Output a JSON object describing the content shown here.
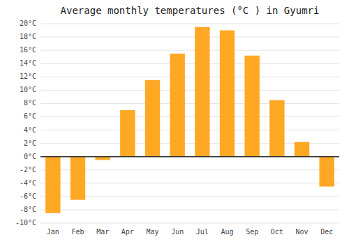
{
  "chart_data": {
    "type": "bar",
    "title": "Average monthly temperatures (°C ) in Gyumri",
    "categories": [
      "Jan",
      "Feb",
      "Mar",
      "Apr",
      "May",
      "Jun",
      "Jul",
      "Aug",
      "Sep",
      "Oct",
      "Nov",
      "Dec"
    ],
    "values": [
      -8.5,
      -6.5,
      -0.5,
      7,
      11.5,
      15.5,
      19.5,
      19,
      15.2,
      8.5,
      2.2,
      -4.5
    ],
    "color": "#FFA824",
    "ylim": [
      -10,
      20
    ],
    "yticks": [
      {
        "value": -10,
        "label": "-10°C"
      },
      {
        "value": -8,
        "label": "-8°C"
      },
      {
        "value": -6,
        "label": "-6°C"
      },
      {
        "value": -4,
        "label": "-4°C"
      },
      {
        "value": -2,
        "label": "-2°C"
      },
      {
        "value": 0,
        "label": "0°C"
      },
      {
        "value": 2,
        "label": "2°C"
      },
      {
        "value": 4,
        "label": "4°C"
      },
      {
        "value": 6,
        "label": "6°C"
      },
      {
        "value": 8,
        "label": "8°C"
      },
      {
        "value": 10,
        "label": "10°C"
      },
      {
        "value": 12,
        "label": "12°C"
      },
      {
        "value": 14,
        "label": "14°C"
      },
      {
        "value": 16,
        "label": "16°C"
      },
      {
        "value": 18,
        "label": "18°C"
      },
      {
        "value": 20,
        "label": "20°C"
      }
    ],
    "grid": true
  }
}
